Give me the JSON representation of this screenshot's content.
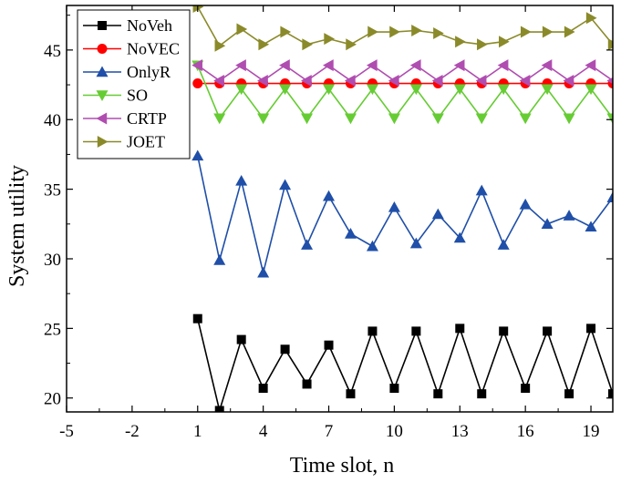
{
  "chart_data": {
    "type": "line",
    "xlabel": "Time  slot, n",
    "ylabel": "System  utility",
    "xlim": [
      -5,
      20
    ],
    "ylim": [
      19,
      48.2
    ],
    "xticks": [
      -5,
      -2,
      1,
      4,
      7,
      10,
      13,
      16,
      19
    ],
    "yticks": [
      20,
      25,
      30,
      35,
      40,
      45
    ],
    "legend_position": "top-left",
    "grid": false,
    "x": [
      1,
      2,
      3,
      4,
      5,
      6,
      7,
      8,
      9,
      10,
      11,
      12,
      13,
      14,
      15,
      16,
      17,
      18,
      19,
      20
    ],
    "series": [
      {
        "name": "NoVeh",
        "color": "#000000",
        "marker": "square",
        "values": [
          25.7,
          19.1,
          24.2,
          20.7,
          23.5,
          21.0,
          23.8,
          20.3,
          24.8,
          20.7,
          24.8,
          20.3,
          25.0,
          20.3,
          24.8,
          20.7,
          24.8,
          20.3,
          25.0,
          20.3
        ]
      },
      {
        "name": "NoVEC",
        "color": "#ff0000",
        "marker": "circle",
        "values": [
          42.6,
          42.6,
          42.6,
          42.6,
          42.6,
          42.6,
          42.6,
          42.6,
          42.6,
          42.6,
          42.6,
          42.6,
          42.6,
          42.6,
          42.6,
          42.6,
          42.6,
          42.6,
          42.6,
          42.6
        ]
      },
      {
        "name": "OnlyR",
        "color": "#1f4fa8",
        "marker": "triangle-up",
        "values": [
          37.4,
          29.9,
          35.6,
          29.0,
          35.3,
          31.0,
          34.5,
          31.8,
          30.9,
          33.7,
          31.1,
          33.2,
          31.5,
          34.9,
          31.0,
          33.9,
          32.5,
          33.1,
          32.3,
          34.4
        ]
      },
      {
        "name": "SO",
        "color": "#66cc33",
        "marker": "triangle-down",
        "values": [
          43.9,
          40.1,
          42.2,
          40.1,
          42.2,
          40.1,
          42.2,
          40.1,
          42.2,
          40.1,
          42.2,
          40.1,
          42.2,
          40.1,
          42.2,
          40.1,
          42.2,
          40.1,
          42.2,
          40.1
        ]
      },
      {
        "name": "CRTP",
        "color": "#b04db0",
        "marker": "triangle-left",
        "values": [
          43.9,
          42.8,
          43.9,
          42.8,
          43.9,
          42.8,
          43.9,
          42.8,
          43.9,
          42.8,
          43.9,
          42.8,
          43.9,
          42.8,
          43.9,
          42.8,
          43.9,
          42.8,
          43.9,
          42.8
        ]
      },
      {
        "name": "JOET",
        "color": "#8a8a2a",
        "marker": "triangle-right",
        "values": [
          48.1,
          45.3,
          46.5,
          45.4,
          46.3,
          45.4,
          45.8,
          45.4,
          46.3,
          46.3,
          46.4,
          46.2,
          45.6,
          45.4,
          45.6,
          46.3,
          46.3,
          46.3,
          47.3,
          45.4
        ]
      }
    ]
  }
}
